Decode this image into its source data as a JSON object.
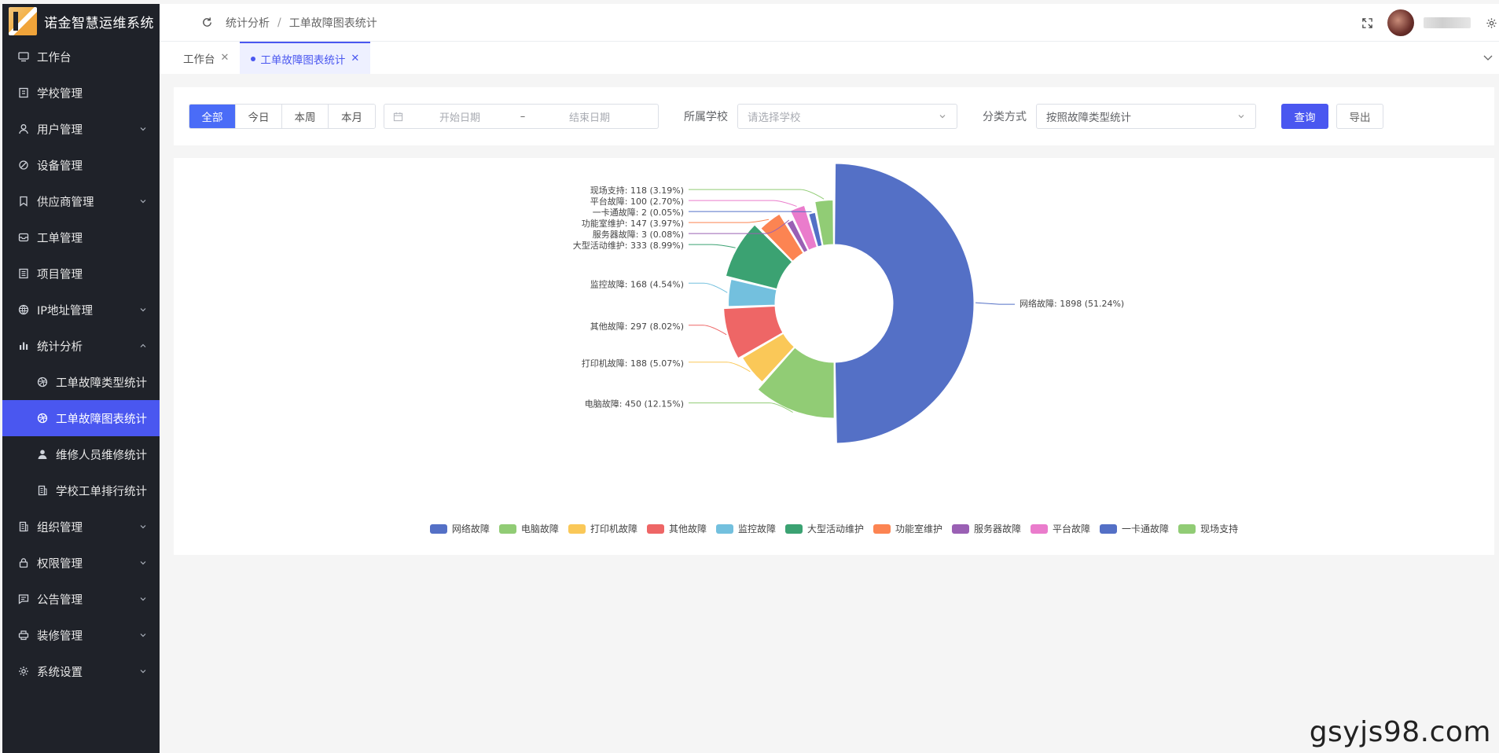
{
  "app": {
    "title": "诺金智慧运维系统"
  },
  "sidebar": {
    "items": [
      {
        "label": "工作台",
        "icon": "monitor-icon",
        "arrow": ""
      },
      {
        "label": "学校管理",
        "icon": "building-icon",
        "arrow": ""
      },
      {
        "label": "用户管理",
        "icon": "user-icon",
        "arrow": "down"
      },
      {
        "label": "设备管理",
        "icon": "device-icon",
        "arrow": ""
      },
      {
        "label": "供应商管理",
        "icon": "bookmark-icon",
        "arrow": "down"
      },
      {
        "label": "工单管理",
        "icon": "inbox-icon",
        "arrow": ""
      },
      {
        "label": "项目管理",
        "icon": "list-icon",
        "arrow": ""
      },
      {
        "label": "IP地址管理",
        "icon": "globe-icon",
        "arrow": "down"
      },
      {
        "label": "统计分析",
        "icon": "bar-chart-icon",
        "arrow": "up"
      }
    ],
    "subitems": [
      {
        "label": "工单故障类型统计",
        "icon": "dribbble-icon"
      },
      {
        "label": "工单故障图表统计",
        "icon": "dribbble-icon"
      },
      {
        "label": "维修人员维修统计",
        "icon": "person-icon"
      },
      {
        "label": "学校工单排行统计",
        "icon": "doc-icon"
      }
    ],
    "items2": [
      {
        "label": "组织管理",
        "icon": "org-icon",
        "arrow": "down"
      },
      {
        "label": "权限管理",
        "icon": "lock-icon",
        "arrow": "down"
      },
      {
        "label": "公告管理",
        "icon": "message-icon",
        "arrow": "down"
      },
      {
        "label": "装修管理",
        "icon": "printer-icon",
        "arrow": "down"
      },
      {
        "label": "系统设置",
        "icon": "gear-icon",
        "arrow": "down"
      }
    ]
  },
  "header": {
    "breadcrumb": [
      "统计分析",
      "工单故障图表统计"
    ],
    "breadcrumb_sep": "/"
  },
  "tabs": [
    {
      "label": "工作台",
      "active": false
    },
    {
      "label": "工单故障图表统计",
      "active": true
    }
  ],
  "filters": {
    "periods": [
      "全部",
      "今日",
      "本周",
      "本月"
    ],
    "active_period": "全部",
    "date_start_placeholder": "开始日期",
    "date_sep": "–",
    "date_end_placeholder": "结束日期",
    "school_label": "所属学校",
    "school_placeholder": "请选择学校",
    "category_label": "分类方式",
    "category_value": "按照故障类型统计",
    "query_button": "查询",
    "export_button": "导出"
  },
  "chart_data": {
    "type": "pie",
    "variant": "donut-rose",
    "title": "",
    "series": [
      {
        "name": "网络故障",
        "value": 1898,
        "percent": "51.24%",
        "color": "#5470c6"
      },
      {
        "name": "电脑故障",
        "value": 450,
        "percent": "12.15%",
        "color": "#91cc75"
      },
      {
        "name": "打印机故障",
        "value": 188,
        "percent": "5.07%",
        "color": "#fac858"
      },
      {
        "name": "其他故障",
        "value": 297,
        "percent": "8.02%",
        "color": "#ee6666"
      },
      {
        "name": "监控故障",
        "value": 168,
        "percent": "4.54%",
        "color": "#73c0de"
      },
      {
        "name": "大型活动维护",
        "value": 333,
        "percent": "8.99%",
        "color": "#3ba272"
      },
      {
        "name": "功能室维护",
        "value": 147,
        "percent": "3.97%",
        "color": "#fc8452"
      },
      {
        "name": "服务器故障",
        "value": 3,
        "percent": "0.08%",
        "color": "#9a60b4"
      },
      {
        "name": "平台故障",
        "value": 100,
        "percent": "2.70%",
        "color": "#ea7ccc"
      },
      {
        "name": "一卡通故障",
        "value": 2,
        "percent": "0.05%",
        "color": "#5470c6"
      },
      {
        "name": "现场支持",
        "value": 118,
        "percent": "3.19%",
        "color": "#91cc75"
      }
    ],
    "legend_position": "bottom-center"
  },
  "watermark": "gsyjs98.com"
}
